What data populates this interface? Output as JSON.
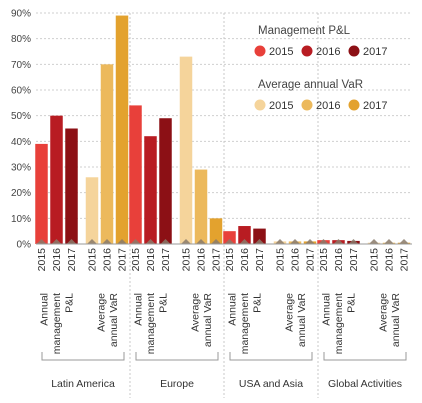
{
  "chart_data": {
    "type": "bar",
    "ylim": [
      0,
      90
    ],
    "y_ticks": [
      "0%",
      "10%",
      "20%",
      "30%",
      "40%",
      "50%",
      "60%",
      "70%",
      "80%",
      "90%"
    ],
    "grid": "horizontal",
    "legend_position": "top-right",
    "years": [
      "2015",
      "2016",
      "2017"
    ],
    "legend": {
      "groups": [
        {
          "title": "Management P&L",
          "items": [
            {
              "label": "2015",
              "color": "#e8403a"
            },
            {
              "label": "2016",
              "color": "#b81c22"
            },
            {
              "label": "2017",
              "color": "#8c1015"
            }
          ]
        },
        {
          "title": "Average annual VaR",
          "items": [
            {
              "label": "2015",
              "color": "#f5d49b"
            },
            {
              "label": "2016",
              "color": "#ecb95c"
            },
            {
              "label": "2017",
              "color": "#e3a22e"
            }
          ]
        }
      ]
    },
    "metrics": [
      {
        "label_lines": [
          "Annual",
          "management",
          "P&L"
        ],
        "colors": [
          "#e8403a",
          "#b81c22",
          "#8c1015"
        ]
      },
      {
        "label_lines": [
          "Average",
          "annual VaR"
        ],
        "colors": [
          "#f5d49b",
          "#ecb95c",
          "#e3a22e"
        ]
      }
    ],
    "regions": [
      {
        "name": "Latin America",
        "management_pl": [
          39,
          50,
          45
        ],
        "average_var": [
          26,
          70,
          89
        ]
      },
      {
        "name": "Europe",
        "management_pl": [
          54,
          42,
          49
        ],
        "average_var": [
          73,
          29,
          10
        ]
      },
      {
        "name": "USA and Asia",
        "management_pl": [
          5,
          7,
          6
        ],
        "average_var": [
          1,
          1,
          1
        ]
      },
      {
        "name": "Global Activities",
        "management_pl": [
          1.5,
          1.5,
          1.2
        ],
        "average_var": [
          0.5,
          0.5,
          0.5
        ]
      }
    ],
    "marker_color": "#8a7a6a"
  }
}
